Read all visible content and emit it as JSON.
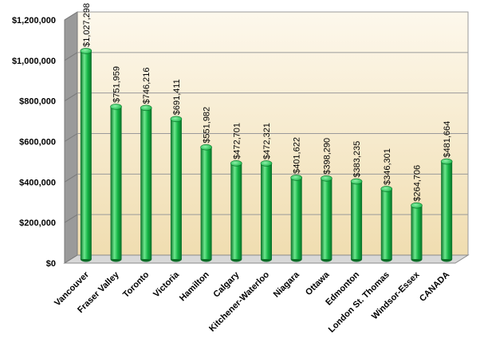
{
  "chart_data": {
    "type": "bar",
    "title": "",
    "xlabel": "",
    "ylabel": "",
    "ylim": [
      0,
      1200000
    ],
    "yticks": [
      {
        "value": 0,
        "label": "$0"
      },
      {
        "value": 200000,
        "label": "$200,000"
      },
      {
        "value": 400000,
        "label": "$400,000"
      },
      {
        "value": 600000,
        "label": "$600,000"
      },
      {
        "value": 800000,
        "label": "$800,000"
      },
      {
        "value": 1000000,
        "label": "$1,000,000"
      },
      {
        "value": 1200000,
        "label": "$1,200,000"
      }
    ],
    "categories": [
      "Vancouver",
      "Fraser Valley",
      "Toronto",
      "Victoria",
      "Hamilton",
      "Calgary",
      "Kitchener-Waterloo",
      "Niagara",
      "Ottawa",
      "Edmonton",
      "London St. Thomas",
      "Windsor-Essex",
      "CANADA"
    ],
    "values": [
      1027298,
      751959,
      746216,
      691411,
      551982,
      472701,
      472321,
      401622,
      398290,
      383235,
      346301,
      264706,
      481664
    ],
    "data_labels": [
      "$1,027,298",
      "$751,959",
      "$746,216",
      "$691,411",
      "$551,982",
      "$472,701",
      "$472,321",
      "$401,622",
      "$398,290",
      "$383,235",
      "$346,301",
      "$264,706",
      "$481,664"
    ],
    "grid": true,
    "legend": "none",
    "colors": {
      "bar_light": "#6ee88e",
      "bar_mid": "#14b445",
      "bar_dark": "#0a6e28",
      "plot_top": "#fdf8ec",
      "plot_bottom": "#f0ddb0",
      "floor": "#d8d8d8",
      "side_wall": "#9a9a9a",
      "grid": "#9a9a9a"
    }
  }
}
